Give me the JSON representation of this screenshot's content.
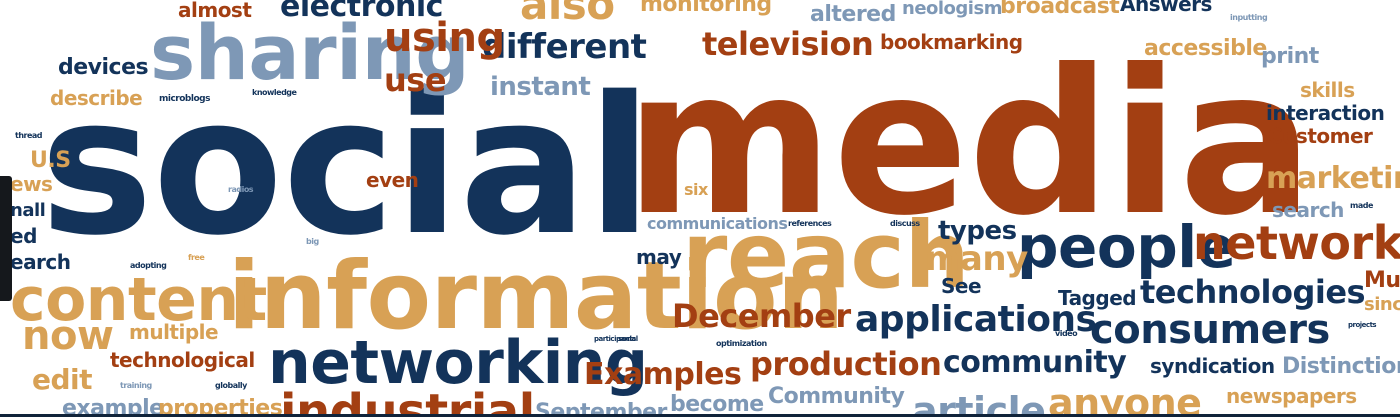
{
  "colors": {
    "navy": "#13335a",
    "rust": "#a33f12",
    "tan": "#d8a155",
    "slate": "#7e98b6"
  },
  "words": [
    {
      "text": "social",
      "color": "navy"
    },
    {
      "text": "media",
      "color": "rust"
    },
    {
      "text": "reach",
      "color": "tan"
    },
    {
      "text": "information",
      "color": "tan"
    },
    {
      "text": "sharing",
      "color": "slate"
    },
    {
      "text": "content",
      "color": "tan"
    },
    {
      "text": "networking",
      "color": "navy"
    },
    {
      "text": "people",
      "color": "navy"
    },
    {
      "text": "network",
      "color": "rust"
    },
    {
      "text": "consumers",
      "color": "navy"
    },
    {
      "text": "applications",
      "color": "navy"
    },
    {
      "text": "technologies",
      "color": "navy"
    },
    {
      "text": "different",
      "color": "navy"
    },
    {
      "text": "television",
      "color": "rust"
    },
    {
      "text": "using",
      "color": "rust"
    },
    {
      "text": "December",
      "color": "rust"
    },
    {
      "text": "production",
      "color": "rust"
    },
    {
      "text": "community",
      "color": "navy"
    },
    {
      "text": "Examples",
      "color": "rust"
    },
    {
      "text": "many",
      "color": "tan"
    },
    {
      "text": "now",
      "color": "tan"
    },
    {
      "text": "use",
      "color": "rust"
    },
    {
      "text": "instant",
      "color": "slate"
    },
    {
      "text": "bookmarking",
      "color": "rust"
    },
    {
      "text": "accessible",
      "color": "tan"
    },
    {
      "text": "print",
      "color": "slate"
    },
    {
      "text": "skills",
      "color": "tan"
    },
    {
      "text": "interaction",
      "color": "navy"
    },
    {
      "text": "Customer",
      "color": "rust"
    },
    {
      "text": "marketin",
      "color": "tan"
    },
    {
      "text": "search",
      "color": "slate"
    },
    {
      "text": "types",
      "color": "navy"
    },
    {
      "text": "may",
      "color": "navy"
    },
    {
      "text": "See",
      "color": "navy"
    },
    {
      "text": "Tagged",
      "color": "navy"
    },
    {
      "text": "syndication",
      "color": "navy"
    },
    {
      "text": "Distinction",
      "color": "slate"
    },
    {
      "text": "newspapers",
      "color": "tan"
    },
    {
      "text": "technological",
      "color": "rust"
    },
    {
      "text": "edit",
      "color": "tan"
    },
    {
      "text": "multiple",
      "color": "tan"
    },
    {
      "text": "devices",
      "color": "navy"
    },
    {
      "text": "describe",
      "color": "tan"
    },
    {
      "text": "microblogs",
      "color": "navy"
    },
    {
      "text": "knowledge",
      "color": "navy"
    },
    {
      "text": "even",
      "color": "rust"
    },
    {
      "text": "six",
      "color": "tan"
    },
    {
      "text": "communications",
      "color": "slate"
    },
    {
      "text": "references",
      "color": "navy"
    },
    {
      "text": "discuss",
      "color": "navy"
    },
    {
      "text": "almost",
      "color": "rust"
    },
    {
      "text": "electronic",
      "color": "navy"
    },
    {
      "text": "also",
      "color": "tan"
    },
    {
      "text": "monitoring",
      "color": "tan"
    },
    {
      "text": "altered",
      "color": "slate"
    },
    {
      "text": "neologism",
      "color": "slate"
    },
    {
      "text": "broadcast",
      "color": "tan"
    },
    {
      "text": "Answers",
      "color": "navy"
    },
    {
      "text": "inputting",
      "color": "slate"
    },
    {
      "text": "thread",
      "color": "navy"
    },
    {
      "text": "U.S",
      "color": "tan"
    },
    {
      "text": "ews",
      "color": "tan"
    },
    {
      "text": "nall",
      "color": "navy"
    },
    {
      "text": "ed",
      "color": "navy"
    },
    {
      "text": "earch",
      "color": "navy"
    },
    {
      "text": "radios",
      "color": "slate"
    },
    {
      "text": "big",
      "color": "slate"
    },
    {
      "text": "adopting",
      "color": "navy"
    },
    {
      "text": "free",
      "color": "tan"
    },
    {
      "text": "participants",
      "color": "navy"
    },
    {
      "text": "social",
      "color": "navy"
    },
    {
      "text": "optimization",
      "color": "navy"
    },
    {
      "text": "video",
      "color": "navy"
    },
    {
      "text": "training",
      "color": "slate"
    },
    {
      "text": "globally",
      "color": "navy"
    },
    {
      "text": "example",
      "color": "slate"
    },
    {
      "text": "properties",
      "color": "tan"
    },
    {
      "text": "industrial",
      "color": "rust"
    },
    {
      "text": "September",
      "color": "slate"
    },
    {
      "text": "become",
      "color": "slate"
    },
    {
      "text": "Community",
      "color": "slate"
    },
    {
      "text": "article",
      "color": "slate"
    },
    {
      "text": "anyone",
      "color": "tan"
    },
    {
      "text": "Mu",
      "color": "rust"
    },
    {
      "text": "sinc",
      "color": "tan"
    },
    {
      "text": "projects",
      "color": "navy"
    },
    {
      "text": "made",
      "color": "navy"
    }
  ]
}
